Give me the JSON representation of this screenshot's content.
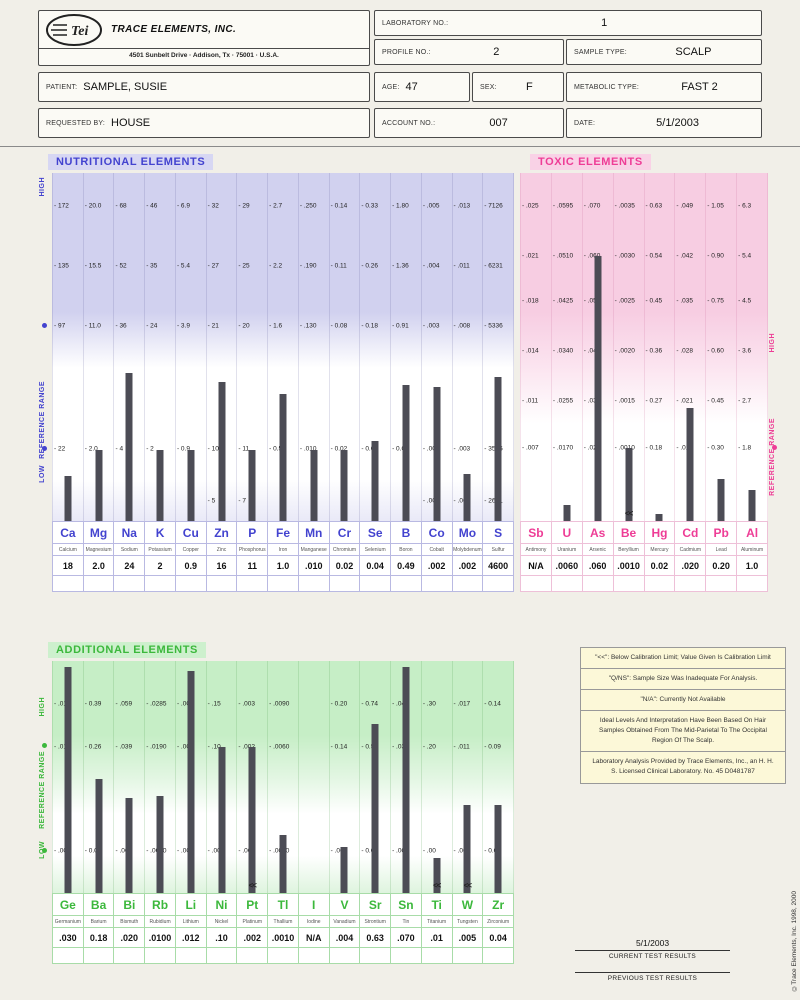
{
  "header": {
    "logo": {
      "brand": "Tei",
      "company": "TRACE ELEMENTS, INC.",
      "address": "4501 Sunbelt Drive · Addison, Tx · 75001 · U.S.A."
    },
    "fields": {
      "laboratory_no_label": "LABORATORY NO.:",
      "laboratory_no": "1",
      "profile_no_label": "PROFILE NO.:",
      "profile_no": "2",
      "sample_type_label": "SAMPLE TYPE:",
      "sample_type": "SCALP",
      "patient_label": "PATIENT:",
      "patient": "SAMPLE, SUSIE",
      "age_label": "AGE:",
      "age": "47",
      "sex_label": "SEX:",
      "sex": "F",
      "metabolic_type_label": "METABOLIC TYPE:",
      "metabolic_type": "FAST 2",
      "requested_by_label": "REQUESTED BY:",
      "requested_by": "HOUSE",
      "account_no_label": "ACCOUNT NO.:",
      "account_no": "007",
      "date_label": "DATE:",
      "date": "5/1/2003"
    }
  },
  "chart_data": [
    {
      "id": "nutritional",
      "type": "bar",
      "title": "NUTRITIONAL ELEMENTS",
      "axis_labels": {
        "high": "HIGH",
        "ref": "REFERENCE RANGE",
        "low": "LOW"
      },
      "row_fracs": [
        0.095,
        0.267,
        0.44,
        0.793,
        0.943
      ],
      "columns": [
        {
          "symbol": "Ca",
          "name": "Calcium",
          "value": "18",
          "scale": [
            "172",
            "135",
            "97",
            "22",
            ""
          ],
          "bar": 0.13
        },
        {
          "symbol": "Mg",
          "name": "Magnesium",
          "value": "2.0",
          "scale": [
            "20.0",
            "15.5",
            "11.0",
            "2.0",
            ""
          ],
          "bar": 0.205
        },
        {
          "symbol": "Na",
          "name": "Sodium",
          "value": "24",
          "scale": [
            "68",
            "52",
            "36",
            "4",
            ""
          ],
          "bar": 0.425
        },
        {
          "symbol": "K",
          "name": "Potassium",
          "value": "2",
          "scale": [
            "46",
            "35",
            "24",
            "2",
            ""
          ],
          "bar": 0.205
        },
        {
          "symbol": "Cu",
          "name": "Copper",
          "value": "0.9",
          "scale": [
            "6.9",
            "5.4",
            "3.9",
            "0.9",
            ""
          ],
          "bar": 0.205
        },
        {
          "symbol": "Zn",
          "name": "Zinc",
          "value": "16",
          "scale": [
            "32",
            "27",
            "21",
            "10",
            "5"
          ],
          "bar": 0.4
        },
        {
          "symbol": "P",
          "name": "Phosphorus",
          "value": "11",
          "scale": [
            "29",
            "25",
            "20",
            "11",
            "7"
          ],
          "bar": 0.205
        },
        {
          "symbol": "Fe",
          "name": "Iron",
          "value": "1.0",
          "scale": [
            "2.7",
            "2.2",
            "1.6",
            "0.5",
            ""
          ],
          "bar": 0.365
        },
        {
          "symbol": "Mn",
          "name": "Manganese",
          "value": ".010",
          "scale": [
            ".250",
            ".190",
            ".130",
            ".010",
            ""
          ],
          "bar": 0.205
        },
        {
          "symbol": "Cr",
          "name": "Chromium",
          "value": "0.02",
          "scale": [
            "0.14",
            "0.11",
            "0.08",
            "0.02",
            ""
          ],
          "bar": 0.205
        },
        {
          "symbol": "Se",
          "name": "Selenium",
          "value": "0.04",
          "scale": [
            "0.33",
            "0.26",
            "0.18",
            "0.03",
            ""
          ],
          "bar": 0.23
        },
        {
          "symbol": "B",
          "name": "Boron",
          "value": "0.49",
          "scale": [
            "1.80",
            "1.36",
            "0.91",
            "0.02",
            ""
          ],
          "bar": 0.39
        },
        {
          "symbol": "Co",
          "name": "Cobalt",
          "value": ".002",
          "scale": [
            ".005",
            ".004",
            ".003",
            ".001",
            ".000"
          ],
          "bar": 0.385
        },
        {
          "symbol": "Mo",
          "name": "Molybdenum",
          "value": ".002",
          "scale": [
            ".013",
            ".011",
            ".008",
            ".003",
            ".001"
          ],
          "bar": 0.135
        },
        {
          "symbol": "S",
          "name": "Sulfur",
          "value": "4600",
          "scale": [
            "7126",
            "6231",
            "5336",
            "3546",
            "2651"
          ],
          "bar": 0.415
        }
      ]
    },
    {
      "id": "toxic",
      "type": "bar",
      "title": "TOXIC ELEMENTS",
      "axis_labels": {
        "high": "HIGH",
        "ref": "REFERENCE RANGE"
      },
      "row_fracs": [
        0.095,
        0.239,
        0.368,
        0.512,
        0.655,
        0.79
      ],
      "columns": [
        {
          "symbol": "Sb",
          "name": "Antimony",
          "value": "N/A",
          "scale": [
            ".025",
            ".021",
            ".018",
            ".014",
            ".011",
            ".007"
          ],
          "bar": 0
        },
        {
          "symbol": "U",
          "name": "Uranium",
          "value": ".0060",
          "scale": [
            ".0595",
            ".0510",
            ".0425",
            ".0340",
            ".0255",
            ".0170"
          ],
          "bar": 0.045
        },
        {
          "symbol": "As",
          "name": "Arsenic",
          "value": ".060",
          "scale": [
            ".070",
            ".060",
            ".050",
            ".040",
            ".030",
            ".020"
          ],
          "bar": 0.761
        },
        {
          "symbol": "Be",
          "name": "Beryllium",
          "value": ".0010",
          "scale": [
            ".0035",
            ".0030",
            ".0025",
            ".0020",
            ".0015",
            ".0010"
          ],
          "bar": 0.21,
          "marker": "<<"
        },
        {
          "symbol": "Hg",
          "name": "Mercury",
          "value": "0.02",
          "scale": [
            "0.63",
            "0.54",
            "0.45",
            "0.36",
            "0.27",
            "0.18"
          ],
          "bar": 0.02
        },
        {
          "symbol": "Cd",
          "name": "Cadmium",
          "value": ".020",
          "scale": [
            ".049",
            ".042",
            ".035",
            ".028",
            ".021",
            ".014"
          ],
          "bar": 0.325
        },
        {
          "symbol": "Pb",
          "name": "Lead",
          "value": "0.20",
          "scale": [
            "1.05",
            "0.90",
            "0.75",
            "0.60",
            "0.45",
            "0.30"
          ],
          "bar": 0.12
        },
        {
          "symbol": "Al",
          "name": "Aluminum",
          "value": "1.0",
          "scale": [
            "6.3",
            "5.4",
            "4.5",
            "3.6",
            "2.7",
            "1.8"
          ],
          "bar": 0.09
        }
      ]
    },
    {
      "id": "additional",
      "type": "bar",
      "title": "ADDITIONAL ELEMENTS",
      "axis_labels": {
        "high": "HIGH",
        "ref": "REFERENCE RANGE",
        "low": "LOW"
      },
      "row_fracs": [
        0.185,
        0.371,
        0.819
      ],
      "columns": [
        {
          "symbol": "Ge",
          "name": "Germanium",
          "value": ".030",
          "scale": [
            ".014",
            ".011",
            ".006"
          ],
          "bar": 0.975
        },
        {
          "symbol": "Ba",
          "name": "Barium",
          "value": "0.18",
          "scale": [
            "0.39",
            "0.26",
            "0.00"
          ],
          "bar": 0.49
        },
        {
          "symbol": "Bi",
          "name": "Bismuth",
          "value": ".020",
          "scale": [
            ".059",
            ".039",
            ".00"
          ],
          "bar": 0.41
        },
        {
          "symbol": "Rb",
          "name": "Rubidium",
          "value": ".0100",
          "scale": [
            ".0285",
            ".0190",
            ".0000"
          ],
          "bar": 0.42
        },
        {
          "symbol": "Li",
          "name": "Lithium",
          "value": ".012",
          "scale": [
            ".009",
            ".006",
            ".001"
          ],
          "bar": 0.955
        },
        {
          "symbol": "Ni",
          "name": "Nickel",
          "value": ".10",
          "scale": [
            ".15",
            ".10",
            ".00"
          ],
          "bar": 0.63
        },
        {
          "symbol": "Pt",
          "name": "Platinum",
          "value": ".002",
          "scale": [
            ".003",
            ".002",
            ".000"
          ],
          "bar": 0.63,
          "marker": "<<"
        },
        {
          "symbol": "Tl",
          "name": "Thallium",
          "value": ".0010",
          "scale": [
            ".0090",
            ".0060",
            ".0000"
          ],
          "bar": 0.25
        },
        {
          "symbol": "I",
          "name": "Iodine",
          "value": "N/A",
          "scale": [
            "",
            "",
            ""
          ],
          "bar": 0
        },
        {
          "symbol": "V",
          "name": "Vanadium",
          "value": ".004",
          "scale": [
            "0.20",
            "0.14",
            ".002"
          ],
          "bar": 0.2
        },
        {
          "symbol": "Sr",
          "name": "Strontium",
          "value": "0.63",
          "scale": [
            "0.74",
            "0.50",
            "0.03"
          ],
          "bar": 0.73
        },
        {
          "symbol": "Sn",
          "name": "Tin",
          "value": ".070",
          "scale": [
            ".045",
            ".030",
            ".000"
          ],
          "bar": 0.975
        },
        {
          "symbol": "Ti",
          "name": "Titanium",
          "value": ".01",
          "scale": [
            ".30",
            ".20",
            ".00"
          ],
          "bar": 0.15,
          "marker": "<<"
        },
        {
          "symbol": "W",
          "name": "Tungsten",
          "value": ".005",
          "scale": [
            ".017",
            ".011",
            ".000"
          ],
          "bar": 0.38,
          "marker": "<<"
        },
        {
          "symbol": "Zr",
          "name": "Zirconium",
          "value": "0.04",
          "scale": [
            "0.14",
            "0.09",
            "0.00"
          ],
          "bar": 0.38
        }
      ]
    }
  ],
  "notes": [
    "\"<<\": Below Calibration Limit; Value Given Is Calibration Limit",
    "\"Q/NS\": Sample Size Was Inadequate For Analysis.",
    "\"N/A\": Currently Not Available",
    "Ideal Levels And Interpretation Have Been Based On Hair Samples Obtained From The Mid-Parietal To The Occipital Region Of The Scalp.",
    "Laboratory Analysis Provided by Trace Elements, Inc., an H. H. S. Licensed Clinical Laboratory.   No. 45 D0481787"
  ],
  "footer": {
    "date": "5/1/2003",
    "current_label": "CURRENT TEST RESULTS",
    "previous_label": "PREVIOUS TEST RESULTS",
    "copyright": "©Trace Elements, Inc. 1998, 2000"
  }
}
